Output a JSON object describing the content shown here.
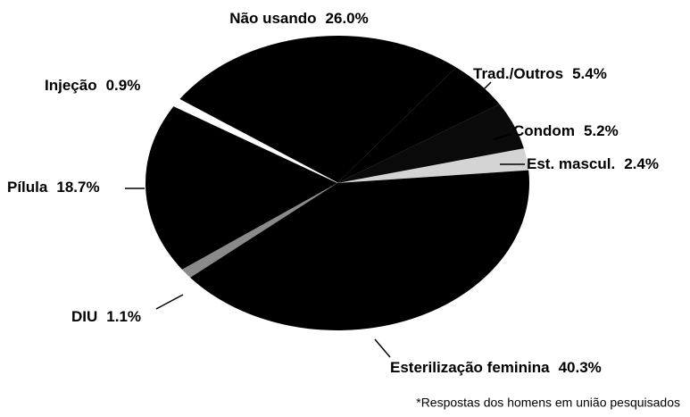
{
  "chart_data": {
    "type": "pie",
    "categories": [
      "Est. mascul.",
      "Condom",
      "Trad./Outros",
      "Não usando",
      "Injeção",
      "Pílula",
      "DIU",
      "Esterilização feminina"
    ],
    "values": [
      2.4,
      5.2,
      5.4,
      26.0,
      0.9,
      18.7,
      1.1,
      40.3
    ],
    "value_labels": [
      "2.4%",
      "5.2%",
      "5.4%",
      "26.0%",
      "0.9%",
      "18.7%",
      "1.1%",
      "40.3%"
    ],
    "colors": [
      "#d4d4d4",
      "#0a0a0a",
      "#000000",
      "#000000",
      "#ffffff",
      "#000000",
      "#8a8a8a",
      "#000000"
    ],
    "note": "*Respostas dos homens em união pesquisados"
  }
}
